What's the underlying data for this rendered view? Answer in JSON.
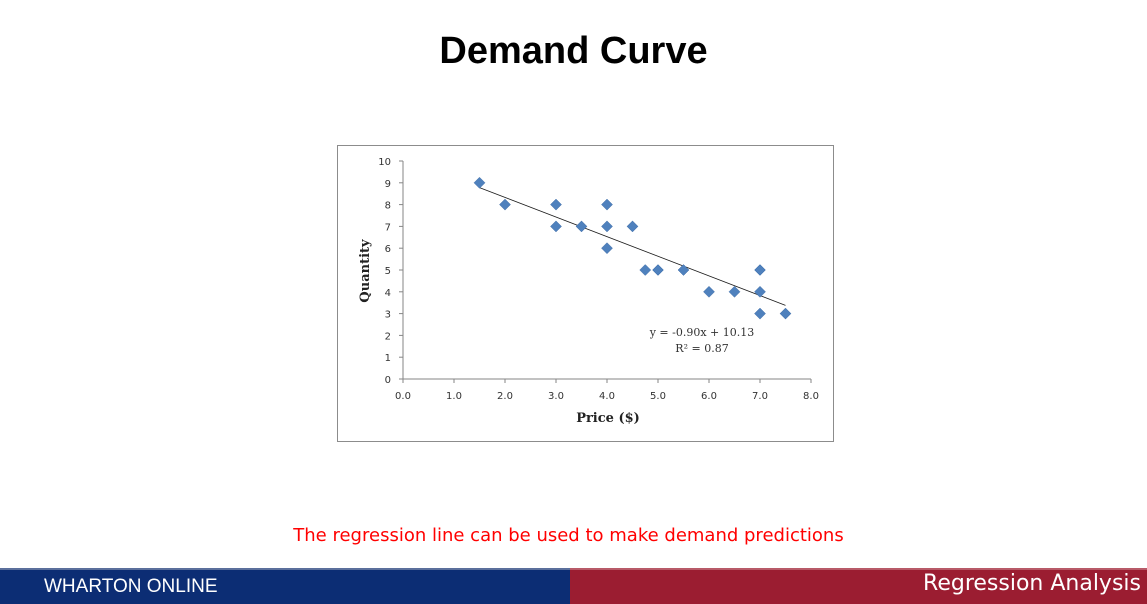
{
  "slide": {
    "title": "Demand Curve",
    "caption": "The regression line can be used to make demand predictions"
  },
  "footer": {
    "left_text": "WHARTON ONLINE",
    "right_text": "Regression Analysis",
    "left_color": "#0c2d74",
    "right_color": "#9b1d31"
  },
  "chart_data": {
    "type": "scatter",
    "title": "",
    "xlabel": "Price ($)",
    "ylabel": "Quantity",
    "xlim": [
      0,
      8
    ],
    "ylim": [
      0,
      10
    ],
    "x_ticks": [
      "0.0",
      "1.0",
      "2.0",
      "3.0",
      "4.0",
      "5.0",
      "6.0",
      "7.0",
      "8.0"
    ],
    "y_ticks": [
      "0",
      "1",
      "2",
      "3",
      "4",
      "5",
      "6",
      "7",
      "8",
      "9",
      "10"
    ],
    "grid": false,
    "legend": "none",
    "marker_color": "#4f81bd",
    "series": [
      {
        "points": [
          {
            "x": 1.5,
            "y": 9
          },
          {
            "x": 2.0,
            "y": 8
          },
          {
            "x": 3.0,
            "y": 8
          },
          {
            "x": 3.0,
            "y": 7
          },
          {
            "x": 3.5,
            "y": 7
          },
          {
            "x": 4.0,
            "y": 8
          },
          {
            "x": 4.0,
            "y": 7
          },
          {
            "x": 4.0,
            "y": 6
          },
          {
            "x": 4.5,
            "y": 7
          },
          {
            "x": 4.75,
            "y": 5
          },
          {
            "x": 5.0,
            "y": 5
          },
          {
            "x": 5.5,
            "y": 5
          },
          {
            "x": 6.0,
            "y": 4
          },
          {
            "x": 6.5,
            "y": 4
          },
          {
            "x": 7.0,
            "y": 5
          },
          {
            "x": 7.0,
            "y": 4
          },
          {
            "x": 7.0,
            "y": 3
          },
          {
            "x": 7.5,
            "y": 3
          }
        ]
      }
    ],
    "trendline": {
      "slope": -0.9,
      "intercept": 10.13,
      "x_range": [
        1.5,
        7.5
      ],
      "equation": "y = -0.90x + 10.13",
      "r_squared": "R² = 0.87"
    }
  }
}
